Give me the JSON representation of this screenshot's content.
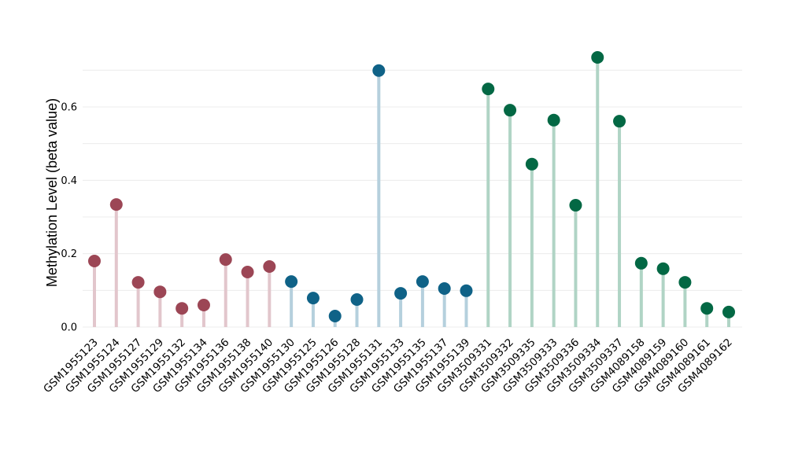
{
  "chart_data": {
    "type": "lollipop",
    "title": "",
    "xlabel": "",
    "ylabel": "Methylation Level (beta value)",
    "ylim": [
      0,
      0.75
    ],
    "yticks": [
      0.0,
      0.2,
      0.4,
      0.6
    ],
    "ytick_labels": [
      "0.0",
      "0.2",
      "0.4",
      "0.6"
    ],
    "grid": true,
    "groups": [
      {
        "color": "#9c4655",
        "stem_color": "#e2c6cc"
      },
      {
        "color": "#0f6287",
        "stem_color": "#b5d0dd"
      },
      {
        "color": "#036844",
        "stem_color": "#b0d4c5"
      }
    ],
    "categories": [
      "GSM1955123",
      "GSM1955124",
      "GSM1955127",
      "GSM1955129",
      "GSM1955132",
      "GSM1955134",
      "GSM1955136",
      "GSM1955138",
      "GSM1955140",
      "GSM1955130",
      "GSM1955125",
      "GSM1955126",
      "GSM1955128",
      "GSM1955131",
      "GSM1955133",
      "GSM1955135",
      "GSM1955137",
      "GSM1955139",
      "GSM3509331",
      "GSM3509332",
      "GSM3509335",
      "GSM3509333",
      "GSM3509336",
      "GSM3509334",
      "GSM3509337",
      "GSM4089158",
      "GSM4089159",
      "GSM4089160",
      "GSM4089161",
      "GSM4089162"
    ],
    "group_index": [
      0,
      0,
      0,
      0,
      0,
      0,
      0,
      0,
      0,
      1,
      1,
      1,
      1,
      1,
      1,
      1,
      1,
      1,
      2,
      2,
      2,
      2,
      2,
      2,
      2,
      2,
      2,
      2,
      2,
      2
    ],
    "values": [
      0.18,
      0.334,
      0.122,
      0.096,
      0.051,
      0.06,
      0.184,
      0.15,
      0.165,
      0.124,
      0.079,
      0.03,
      0.075,
      0.699,
      0.092,
      0.124,
      0.105,
      0.099,
      0.649,
      0.591,
      0.444,
      0.564,
      0.332,
      0.735,
      0.561,
      0.174,
      0.159,
      0.122,
      0.051,
      0.041
    ]
  }
}
